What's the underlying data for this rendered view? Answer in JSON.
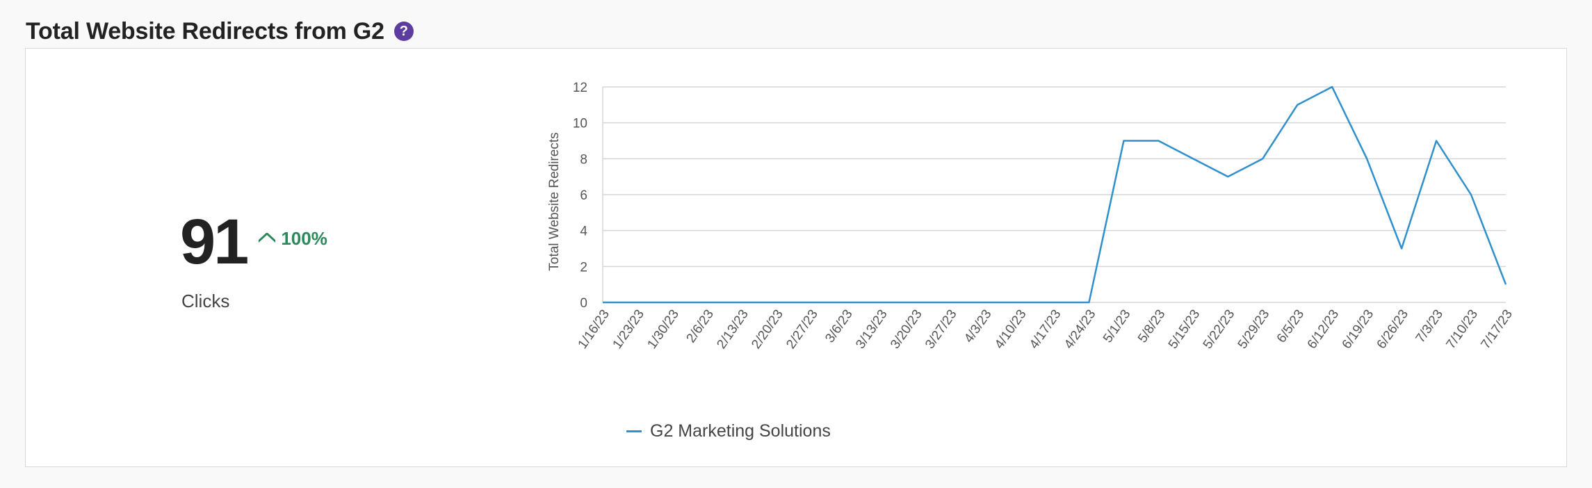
{
  "header": {
    "title": "Total Website Redirects from G2",
    "help_icon": "question-mark-icon"
  },
  "kpi": {
    "value": "91",
    "trend_icon": "chevron-up-icon",
    "trend_pct": "100%",
    "label": "Clicks"
  },
  "colors": {
    "line": "#2e90cc",
    "trend": "#2a8a5a",
    "help_icon": "#5c3c9f",
    "grid": "#d6d6d6"
  },
  "chart_data": {
    "type": "line",
    "title": "",
    "xlabel": "",
    "ylabel": "Total Website Redirects",
    "ylim": [
      0,
      12
    ],
    "yticks": [
      0,
      2,
      4,
      6,
      8,
      10,
      12
    ],
    "grid": true,
    "legend_position": "bottom",
    "categories": [
      "1/16/23",
      "1/23/23",
      "1/30/23",
      "2/6/23",
      "2/13/23",
      "2/20/23",
      "2/27/23",
      "3/6/23",
      "3/13/23",
      "3/20/23",
      "3/27/23",
      "4/3/23",
      "4/10/23",
      "4/17/23",
      "4/24/23",
      "5/1/23",
      "5/8/23",
      "5/15/23",
      "5/22/23",
      "5/29/23",
      "6/5/23",
      "6/12/23",
      "6/19/23",
      "6/26/23",
      "7/3/23",
      "7/10/23",
      "7/17/23"
    ],
    "series": [
      {
        "name": "G2 Marketing Solutions",
        "color": "#2e90cc",
        "values": [
          0,
          0,
          0,
          0,
          0,
          0,
          0,
          0,
          0,
          0,
          0,
          0,
          0,
          0,
          0,
          9,
          9,
          8,
          7,
          8,
          11,
          12,
          8,
          3,
          9,
          6,
          1
        ]
      }
    ]
  }
}
